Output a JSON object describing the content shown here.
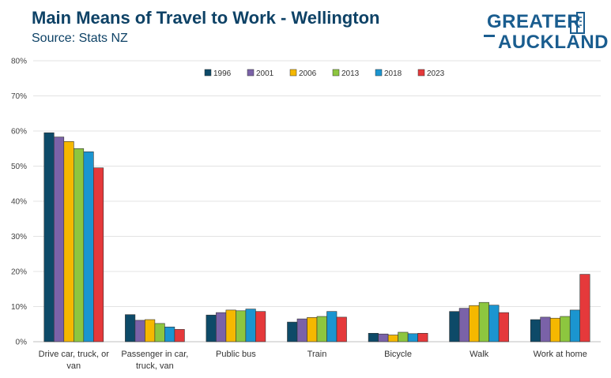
{
  "header": {
    "title": "Main Means of Travel to Work - Wellington",
    "subtitle": "Source: Stats NZ"
  },
  "logo": {
    "line1": "GREATER",
    "line2": "AUCKLAND",
    "color": "#1a5d8f"
  },
  "chart_data": {
    "type": "bar",
    "categories": [
      [
        "Drive car, truck, or",
        "van"
      ],
      [
        "Passenger in car,",
        "truck, van"
      ],
      [
        "Public bus"
      ],
      [
        "Train"
      ],
      [
        "Bicycle"
      ],
      [
        "Walk"
      ],
      [
        "Work at home"
      ]
    ],
    "series": [
      {
        "name": "1996",
        "color": "#0d4a68",
        "values": [
          59.5,
          7.7,
          7.6,
          5.6,
          2.4,
          8.6,
          6.3
        ]
      },
      {
        "name": "2001",
        "color": "#7a62a8",
        "values": [
          58.3,
          6.1,
          8.3,
          6.5,
          2.2,
          9.5,
          7.0
        ]
      },
      {
        "name": "2006",
        "color": "#f5b800",
        "values": [
          57.0,
          6.3,
          9.0,
          6.9,
          1.9,
          10.3,
          6.7
        ]
      },
      {
        "name": "2013",
        "color": "#8dc63f",
        "values": [
          55.0,
          5.2,
          8.8,
          7.2,
          2.7,
          11.2,
          7.2
        ]
      },
      {
        "name": "2018",
        "color": "#1b95d0",
        "values": [
          54.1,
          4.2,
          9.3,
          8.6,
          2.3,
          10.4,
          9.0
        ]
      },
      {
        "name": "2023",
        "color": "#e5393b",
        "values": [
          49.5,
          3.5,
          8.6,
          7.0,
          2.4,
          8.3,
          19.2
        ]
      }
    ],
    "ylim": [
      0,
      80
    ],
    "yticks": [
      "0%",
      "10%",
      "20%",
      "30%",
      "40%",
      "50%",
      "60%",
      "70%",
      "80%"
    ],
    "grid": true,
    "legend_position": "top-center"
  }
}
